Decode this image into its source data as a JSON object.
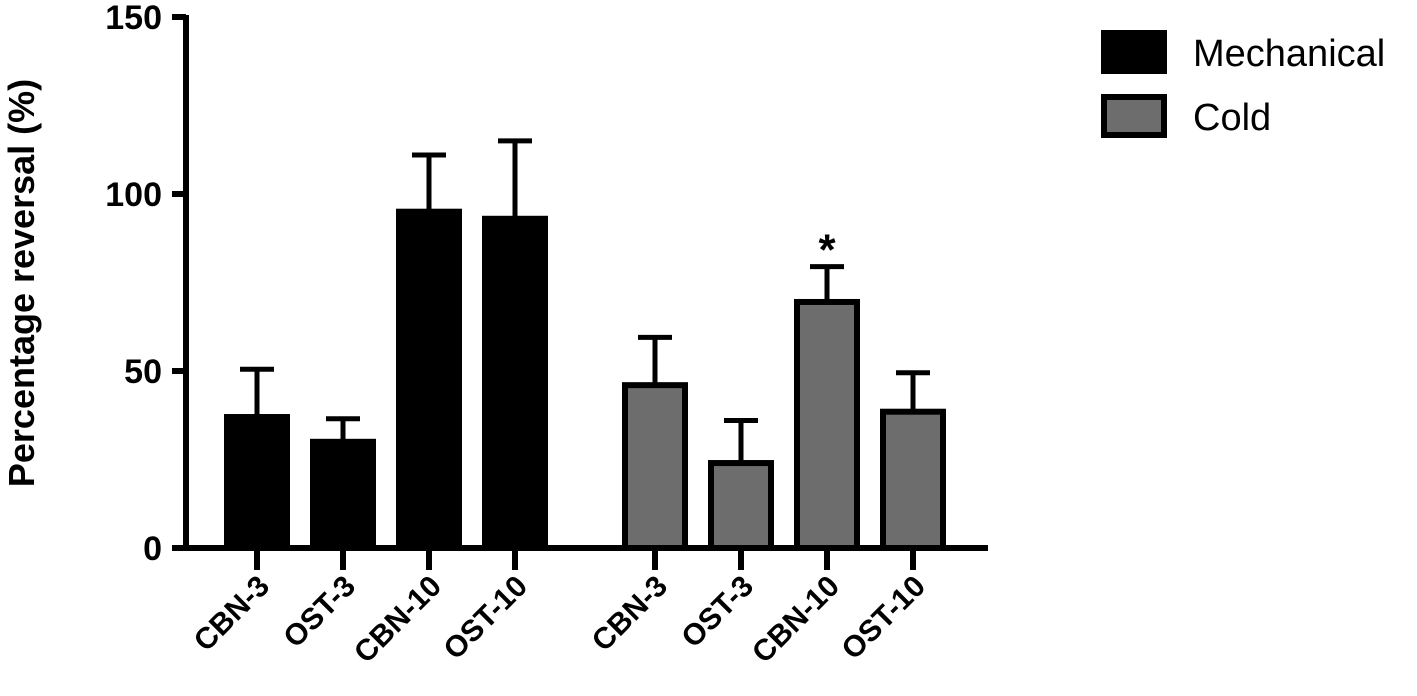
{
  "chart_data": {
    "type": "bar",
    "ylabel": "Percentage reversal  (%)",
    "ylim": [
      0,
      150
    ],
    "yticks": [
      0,
      50,
      100,
      150
    ],
    "grid": false,
    "legend_position": "top-right",
    "groups": [
      {
        "name": "Mechanical",
        "color": "#000000",
        "categories": [
          "CBN-3",
          "OST-3",
          "CBN-10",
          "OST-10"
        ],
        "values": [
          37,
          30,
          95,
          93
        ],
        "errors": [
          13.5,
          6.5,
          16,
          22
        ]
      },
      {
        "name": "Cold",
        "color": "#6d6d6d",
        "categories": [
          "CBN-3",
          "OST-3",
          "CBN-10",
          "OST-10"
        ],
        "values": [
          46,
          24,
          69.5,
          38.5
        ],
        "errors": [
          13.5,
          12,
          10,
          11
        ]
      }
    ],
    "annotations": [
      {
        "text": "*",
        "group": 1,
        "index": 2
      }
    ]
  }
}
